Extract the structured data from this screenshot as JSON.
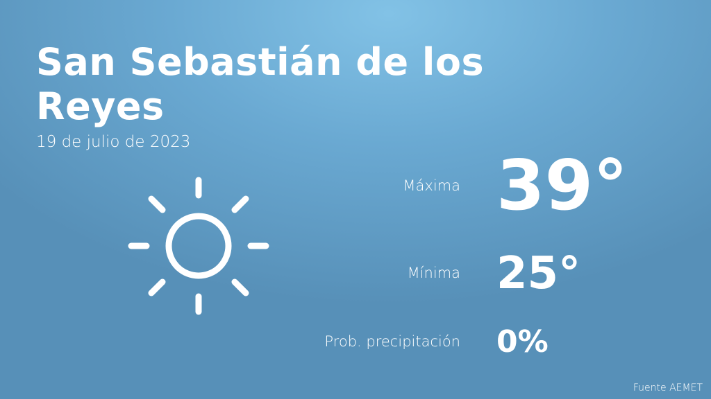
{
  "header": {
    "title": "San Sebastián de los Reyes",
    "date": "19 de julio de 2023"
  },
  "forecast": [
    {
      "label": "Máxima",
      "value": "39°"
    },
    {
      "label": "Mínima",
      "value": "25°"
    },
    {
      "label": "Prob. precipitación",
      "value": "0%"
    }
  ],
  "footer": {
    "source": "Fuente AEMET"
  }
}
